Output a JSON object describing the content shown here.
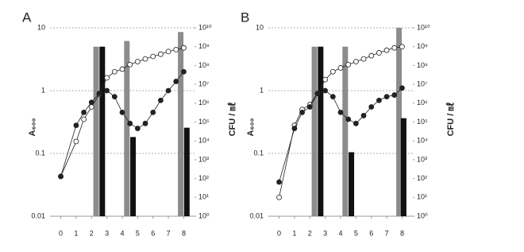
{
  "chart_data": [
    {
      "type": "combo",
      "panel_label": "A",
      "ylabel": "A₆₀₀",
      "y2label": "CFU / ㎖",
      "xlim": [
        -0.7,
        8.7
      ],
      "xticks": [
        0,
        1,
        2,
        3,
        4,
        5,
        6,
        7,
        8
      ],
      "ylim": [
        0.01,
        10
      ],
      "yticks": [
        0.01,
        0.1,
        1,
        10
      ],
      "ylog": true,
      "y2lim": [
        1,
        10000000000
      ],
      "y2log": true,
      "y2ticks": [
        {
          "value": 1,
          "label": "10⁰"
        },
        {
          "value": 10,
          "label": "10¹"
        },
        {
          "value": 100,
          "label": "10²"
        },
        {
          "value": 1000,
          "label": "10³"
        },
        {
          "value": 10000,
          "label": "10⁴"
        },
        {
          "value": 100000,
          "label": "10⁵"
        },
        {
          "value": 1000000,
          "label": "10⁶"
        },
        {
          "value": 10000000,
          "label": "10⁷"
        },
        {
          "value": 100000000,
          "label": "10⁸"
        },
        {
          "value": 1000000000,
          "label": "10⁹"
        },
        {
          "value": 10000000000,
          "label": "10¹⁰"
        }
      ],
      "grid": true,
      "series": [
        {
          "kind": "bar",
          "axis": "y2",
          "color": "#8c8c8c",
          "x": [
            2.3,
            4.3,
            7.8
          ],
          "values": [
            1000000000,
            2000000000,
            6000000000
          ]
        },
        {
          "kind": "bar",
          "axis": "y2",
          "color": "#111111",
          "x": [
            2.7,
            4.7,
            8.2
          ],
          "values": [
            1000000000,
            16000,
            50000
          ]
        },
        {
          "kind": "line",
          "marker": "open",
          "color": "#222222",
          "x": [
            0,
            1,
            1.5,
            2,
            2.5,
            3,
            3.5,
            4,
            4.5,
            5,
            5.5,
            6,
            6.5,
            7,
            7.5,
            8
          ],
          "values": [
            0.043,
            0.155,
            0.35,
            0.55,
            0.87,
            1.6,
            2.0,
            2.2,
            2.6,
            2.9,
            3.2,
            3.5,
            3.8,
            4.2,
            4.5,
            4.8
          ]
        },
        {
          "kind": "line",
          "marker": "filled",
          "color": "#222222",
          "x": [
            0,
            1,
            1.5,
            2,
            2.5,
            3,
            3.5,
            4,
            4.5,
            5,
            5.5,
            6,
            6.5,
            7,
            7.5,
            8
          ],
          "values": [
            0.043,
            0.28,
            0.45,
            0.65,
            0.9,
            1.0,
            0.8,
            0.45,
            0.3,
            0.25,
            0.3,
            0.45,
            0.7,
            1.0,
            1.4,
            2.0
          ]
        }
      ]
    },
    {
      "type": "combo",
      "panel_label": "B",
      "ylabel": "A₆₀₀",
      "y2label": "CFU / ㎖",
      "xlim": [
        -0.7,
        8.7
      ],
      "xticks": [
        0,
        1,
        2,
        3,
        4,
        5,
        6,
        7,
        8
      ],
      "ylim": [
        0.01,
        10
      ],
      "yticks": [
        0.01,
        0.1,
        1,
        10
      ],
      "ylog": true,
      "y2lim": [
        1,
        10000000000
      ],
      "y2log": true,
      "y2ticks": [
        {
          "value": 1,
          "label": "10⁰"
        },
        {
          "value": 10,
          "label": "10¹"
        },
        {
          "value": 100,
          "label": "10²"
        },
        {
          "value": 1000,
          "label": "10³"
        },
        {
          "value": 10000,
          "label": "10⁴"
        },
        {
          "value": 100000,
          "label": "10⁵"
        },
        {
          "value": 1000000,
          "label": "10⁶"
        },
        {
          "value": 10000000,
          "label": "10⁷"
        },
        {
          "value": 100000000,
          "label": "10⁸"
        },
        {
          "value": 1000000000,
          "label": "10⁹"
        },
        {
          "value": 10000000000,
          "label": "10¹⁰"
        }
      ],
      "grid": true,
      "series": [
        {
          "kind": "bar",
          "axis": "y2",
          "color": "#8c8c8c",
          "x": [
            2.3,
            4.3,
            7.8
          ],
          "values": [
            1000000000,
            1000000000,
            10000000000
          ]
        },
        {
          "kind": "bar",
          "axis": "y2",
          "color": "#111111",
          "x": [
            2.7,
            4.7,
            8.1
          ],
          "values": [
            1000000000,
            2500,
            160000
          ]
        },
        {
          "kind": "line",
          "marker": "open",
          "color": "#222222",
          "x": [
            0,
            1,
            1.5,
            2,
            2.5,
            3,
            3.5,
            4,
            4.5,
            5,
            5.5,
            6,
            6.5,
            7,
            7.5,
            8
          ],
          "values": [
            0.02,
            0.28,
            0.5,
            0.6,
            0.9,
            1.5,
            2.0,
            2.3,
            2.6,
            2.9,
            3.2,
            3.6,
            4.0,
            4.4,
            4.8,
            5.0
          ]
        },
        {
          "kind": "line",
          "marker": "filled",
          "color": "#222222",
          "x": [
            0,
            1,
            1.5,
            2,
            2.5,
            3,
            3.5,
            4,
            4.5,
            5,
            5.5,
            6,
            6.5,
            7,
            7.5,
            8
          ],
          "values": [
            0.035,
            0.25,
            0.45,
            0.55,
            0.9,
            1.0,
            0.8,
            0.45,
            0.35,
            0.3,
            0.4,
            0.55,
            0.7,
            0.8,
            0.85,
            1.1
          ]
        }
      ]
    }
  ]
}
